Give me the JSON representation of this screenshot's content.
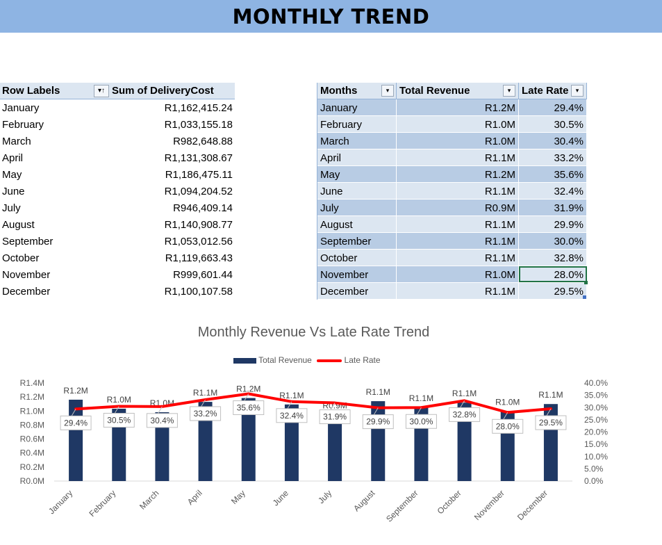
{
  "page": {
    "title": "MONTHLY TREND"
  },
  "pivot": {
    "header_label": "Row Labels",
    "header_value": "Sum of DeliveryCost",
    "filter_icon": "sort-filter-icon",
    "rows": [
      {
        "month": "January",
        "cost": "R1,162,415.24"
      },
      {
        "month": "February",
        "cost": "R1,033,155.18"
      },
      {
        "month": "March",
        "cost": "R982,648.88"
      },
      {
        "month": "April",
        "cost": "R1,131,308.67"
      },
      {
        "month": "May",
        "cost": "R1,186,475.11"
      },
      {
        "month": "June",
        "cost": "R1,094,204.52"
      },
      {
        "month": "July",
        "cost": "R946,409.14"
      },
      {
        "month": "August",
        "cost": "R1,140,908.77"
      },
      {
        "month": "September",
        "cost": "R1,053,012.56"
      },
      {
        "month": "October",
        "cost": "R1,119,663.43"
      },
      {
        "month": "November",
        "cost": "R999,601.44"
      },
      {
        "month": "December",
        "cost": "R1,100,107.58"
      }
    ]
  },
  "table": {
    "headers": [
      "Months",
      "Total Revenue",
      "Late Rate"
    ],
    "rows": [
      {
        "month": "January",
        "revenue": "R1.2M",
        "late": "29.4%"
      },
      {
        "month": "February",
        "revenue": "R1.0M",
        "late": "30.5%"
      },
      {
        "month": "March",
        "revenue": "R1.0M",
        "late": "30.4%"
      },
      {
        "month": "April",
        "revenue": "R1.1M",
        "late": "33.2%"
      },
      {
        "month": "May",
        "revenue": "R1.2M",
        "late": "35.6%"
      },
      {
        "month": "June",
        "revenue": "R1.1M",
        "late": "32.4%"
      },
      {
        "month": "July",
        "revenue": "R0.9M",
        "late": "31.9%"
      },
      {
        "month": "August",
        "revenue": "R1.1M",
        "late": "29.9%"
      },
      {
        "month": "September",
        "revenue": "R1.1M",
        "late": "30.0%"
      },
      {
        "month": "October",
        "revenue": "R1.1M",
        "late": "32.8%"
      },
      {
        "month": "November",
        "revenue": "R1.0M",
        "late": "28.0%"
      },
      {
        "month": "December",
        "revenue": "R1.1M",
        "late": "29.5%"
      }
    ],
    "selected_cell": "November Late Rate"
  },
  "chart_data": {
    "type": "bar",
    "title": "Monthly Revenue Vs Late Rate Trend",
    "categories": [
      "January",
      "February",
      "March",
      "April",
      "May",
      "June",
      "July",
      "August",
      "September",
      "October",
      "November",
      "December"
    ],
    "series": [
      {
        "name": "Total Revenue",
        "kind": "bar",
        "axis": "left",
        "color": "#1f3864",
        "values": [
          1.162,
          1.033,
          0.983,
          1.131,
          1.186,
          1.094,
          0.946,
          1.141,
          1.053,
          1.12,
          1.0,
          1.1
        ],
        "labels": [
          "R1.2M",
          "R1.0M",
          "R1.0M",
          "R1.1M",
          "R1.2M",
          "R1.1M",
          "R0.9M",
          "R1.1M",
          "R1.1M",
          "R1.1M",
          "R1.0M",
          "R1.1M"
        ]
      },
      {
        "name": "Late Rate",
        "kind": "line",
        "axis": "right",
        "color": "#ff0000",
        "values": [
          29.4,
          30.5,
          30.4,
          33.2,
          35.6,
          32.4,
          31.9,
          29.9,
          30.0,
          32.8,
          28.0,
          29.5
        ],
        "labels": [
          "29.4%",
          "30.5%",
          "30.4%",
          "33.2%",
          "35.6%",
          "32.4%",
          "31.9%",
          "29.9%",
          "30.0%",
          "32.8%",
          "28.0%",
          "29.5%"
        ]
      }
    ],
    "y_left": {
      "min": 0,
      "max": 1.4,
      "ticks": [
        "R0.0M",
        "R0.2M",
        "R0.4M",
        "R0.6M",
        "R0.8M",
        "R1.0M",
        "R1.2M",
        "R1.4M"
      ]
    },
    "y_right": {
      "min": 0,
      "max": 40,
      "ticks": [
        "0.0%",
        "5.0%",
        "10.0%",
        "15.0%",
        "20.0%",
        "25.0%",
        "30.0%",
        "35.0%",
        "40.0%"
      ]
    },
    "legend": [
      "Total Revenue",
      "Late Rate"
    ],
    "legend_position": "top"
  }
}
